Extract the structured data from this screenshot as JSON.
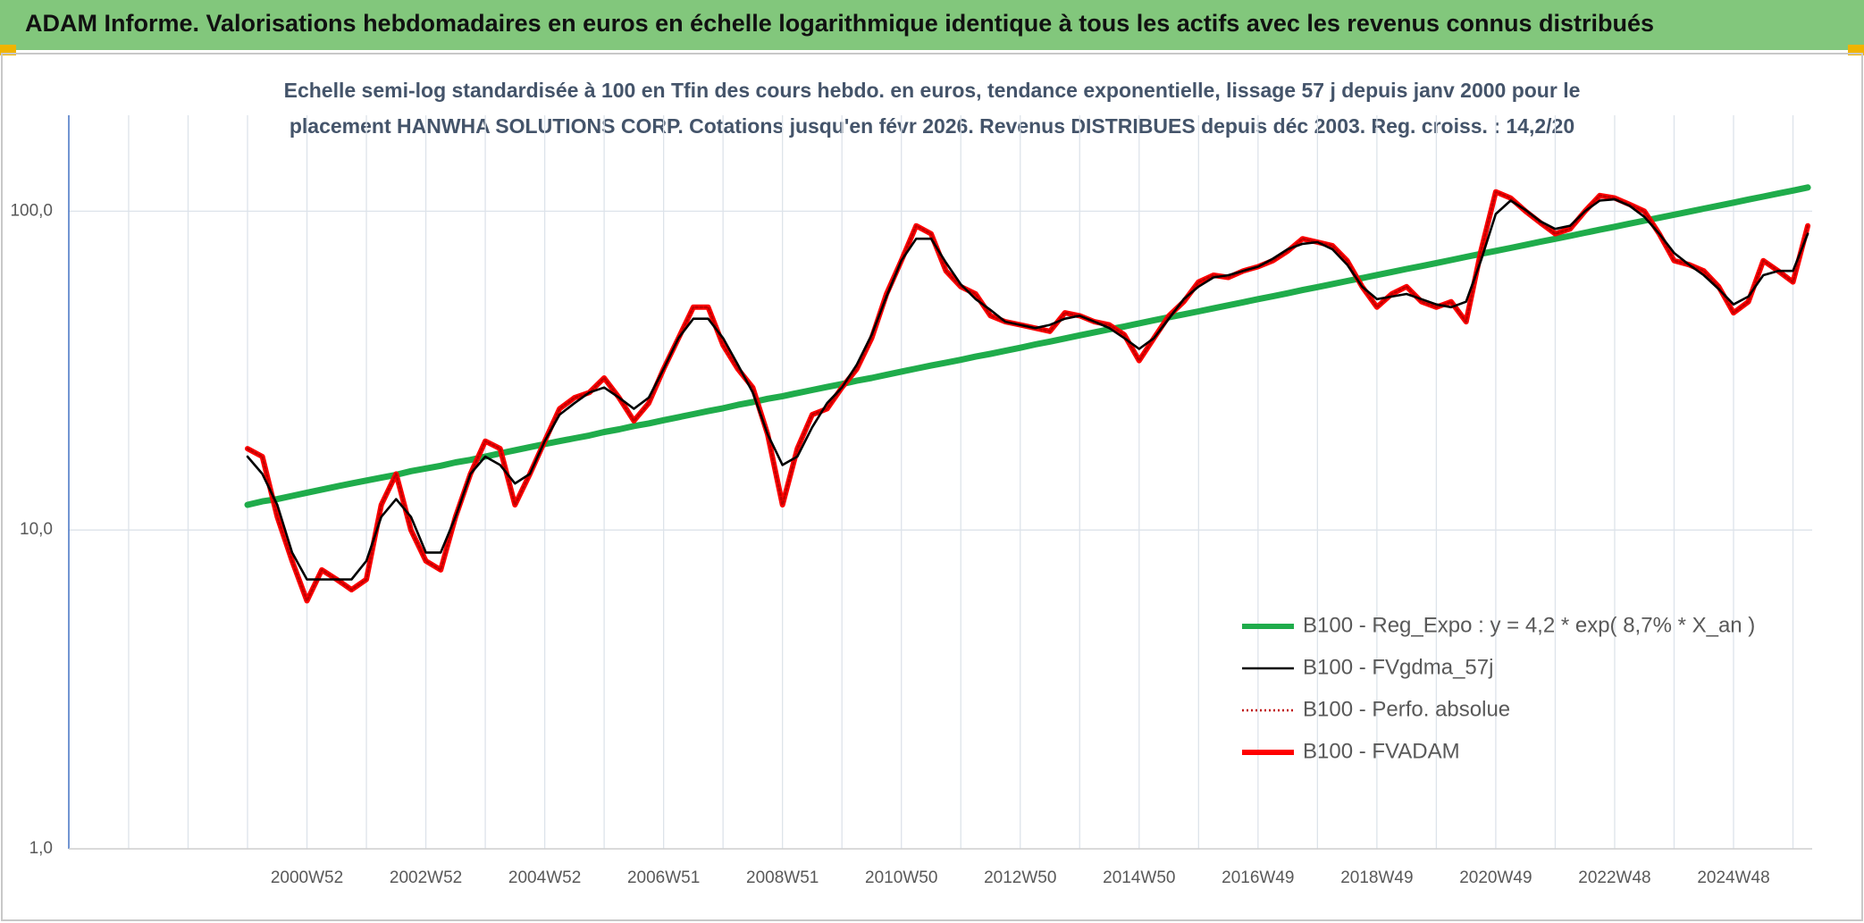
{
  "header": {
    "title": "ADAM Informe. Valorisations hebdomadaires en euros en échelle logarithmique identique à tous les actifs avec les revenus connus distribués"
  },
  "chart_data": {
    "type": "line",
    "subtitle_lines": [
      "Echelle semi-log standardisée à 100 en Tfin des cours hebdo. en euros, tendance exponentielle, lissage 57 j depuis janv 2000 pour le",
      "placement HANWHA SOLUTIONS CORP. Cotations jusqu'en févr 2026. Revenus DISTRIBUES depuis déc 2003. Reg. croiss. : 14,2/20"
    ],
    "y_scale": "log",
    "grid": true,
    "legend": "lower right",
    "ylim": [
      1,
      200
    ],
    "yticks": [
      {
        "value": 1,
        "label": "1,0"
      },
      {
        "value": 10,
        "label": "10,0"
      },
      {
        "value": 100,
        "label": "100,0"
      }
    ],
    "categories": [
      null,
      null,
      null,
      null,
      "2000W52",
      null,
      null,
      null,
      null,
      null,
      null,
      null,
      "2002W52",
      null,
      null,
      null,
      null,
      null,
      null,
      null,
      "2004W52",
      null,
      null,
      null,
      null,
      null,
      null,
      null,
      "2006W51",
      null,
      null,
      null,
      null,
      null,
      null,
      null,
      "2008W51",
      null,
      null,
      null,
      null,
      null,
      null,
      null,
      "2010W50",
      null,
      null,
      null,
      null,
      null,
      null,
      null,
      "2012W50",
      null,
      null,
      null,
      null,
      null,
      null,
      null,
      "2014W50",
      null,
      null,
      null,
      null,
      null,
      null,
      null,
      "2016W49",
      null,
      null,
      null,
      null,
      null,
      null,
      null,
      "2018W49",
      null,
      null,
      null,
      null,
      null,
      null,
      null,
      "2020W49",
      null,
      null,
      null,
      null,
      null,
      null,
      null,
      "2022W48",
      null,
      null,
      null,
      null,
      null,
      null,
      null,
      "2024W48",
      null,
      null,
      null,
      null,
      null
    ],
    "series": [
      {
        "name": "B100 - Reg_Expo : y = 4,2 * exp( 8,7% *  X_an )",
        "color": "#1fac4b",
        "line_style": "solid",
        "values": [
          12.0,
          12.3,
          12.5,
          12.8,
          13.1,
          13.4,
          13.7,
          14.0,
          14.3,
          14.6,
          14.9,
          15.3,
          15.6,
          15.9,
          16.3,
          16.6,
          17.0,
          17.4,
          17.8,
          18.2,
          18.6,
          19.0,
          19.4,
          19.8,
          20.3,
          20.7,
          21.2,
          21.6,
          22.1,
          22.6,
          23.1,
          23.6,
          24.1,
          24.7,
          25.2,
          25.8,
          26.3,
          26.9,
          27.5,
          28.1,
          28.7,
          29.4,
          30.0,
          30.7,
          31.4,
          32.1,
          32.8,
          33.5,
          34.2,
          35.0,
          35.7,
          36.5,
          37.3,
          38.2,
          39.0,
          39.9,
          40.8,
          41.7,
          42.6,
          43.5,
          44.5,
          45.5,
          46.5,
          47.5,
          48.5,
          49.6,
          50.7,
          51.8,
          53.0,
          54.1,
          55.3,
          56.6,
          57.8,
          59.1,
          60.4,
          61.7,
          63.1,
          64.5,
          65.9,
          67.3,
          68.8,
          70.3,
          71.9,
          73.5,
          75.1,
          76.7,
          78.4,
          80.2,
          81.9,
          83.7,
          85.6,
          87.5,
          89.4,
          91.4,
          93.4,
          95.4,
          97.5,
          99.7,
          101.9,
          104.1,
          106.4,
          108.8,
          111.2,
          113.6,
          116.1,
          118.7
        ]
      },
      {
        "name": "B100 - FVgdma_57j",
        "color": "#000000",
        "line_style": "solid",
        "values": [
          17,
          15,
          12,
          8.5,
          7,
          7,
          7,
          7,
          8,
          11,
          12.5,
          11,
          8.5,
          8.5,
          11,
          15,
          17,
          16,
          14,
          15,
          19,
          23,
          25,
          27,
          28,
          26,
          24,
          26,
          32,
          40,
          46,
          46,
          40,
          33,
          27,
          20,
          16,
          17,
          21,
          25,
          28,
          33,
          41,
          54,
          70,
          82,
          82,
          69,
          59,
          53,
          49,
          45,
          44,
          43,
          44,
          46,
          47,
          45,
          43,
          40,
          37,
          40,
          46,
          53,
          58,
          62,
          63,
          65,
          67,
          71,
          76,
          79,
          80,
          76,
          68,
          58,
          53,
          54,
          55,
          53,
          51,
          50,
          52,
          70,
          98,
          108,
          101,
          93,
          88,
          90,
          100,
          108,
          109,
          104,
          96,
          85,
          74,
          68,
          63,
          57,
          51,
          54,
          63,
          65,
          65,
          85
        ]
      },
      {
        "name": "B100 - Perfo. absolue",
        "color": "#c00000",
        "line_style": "dotted",
        "values": [
          18,
          17,
          11,
          8,
          6,
          7.5,
          7,
          6.5,
          7,
          12,
          15,
          10,
          8,
          7.5,
          11,
          15,
          19,
          18,
          12,
          15,
          19,
          24,
          26,
          27,
          30,
          26,
          22,
          25,
          32,
          40,
          50,
          50,
          38,
          32,
          28,
          20,
          12,
          18,
          23,
          24,
          28,
          32,
          40,
          55,
          70,
          90,
          85,
          65,
          58,
          55,
          47,
          45,
          44,
          43,
          42,
          48,
          47,
          45,
          44,
          41,
          34,
          40,
          47,
          52,
          60,
          63,
          62,
          65,
          67,
          70,
          75,
          82,
          80,
          78,
          70,
          58,
          50,
          55,
          58,
          52,
          50,
          52,
          45,
          75,
          115,
          110,
          100,
          92,
          85,
          88,
          100,
          112,
          110,
          105,
          100,
          85,
          70,
          68,
          65,
          58,
          48,
          52,
          70,
          65,
          60,
          90
        ]
      },
      {
        "name": "B100 - FVADAM",
        "color": "#ff0000",
        "line_style": "solid",
        "values": [
          18,
          17,
          11,
          8,
          6,
          7.5,
          7,
          6.5,
          7,
          12,
          15,
          10,
          8,
          7.5,
          11,
          15,
          19,
          18,
          12,
          15,
          19,
          24,
          26,
          27,
          30,
          26,
          22,
          25,
          32,
          40,
          50,
          50,
          38,
          32,
          28,
          20,
          12,
          18,
          23,
          24,
          28,
          32,
          40,
          55,
          70,
          90,
          85,
          65,
          58,
          55,
          47,
          45,
          44,
          43,
          42,
          48,
          47,
          45,
          44,
          41,
          34,
          40,
          47,
          52,
          60,
          63,
          62,
          65,
          67,
          70,
          75,
          82,
          80,
          78,
          70,
          58,
          50,
          55,
          58,
          52,
          50,
          52,
          45,
          75,
          115,
          110,
          100,
          92,
          85,
          88,
          100,
          112,
          110,
          105,
          100,
          85,
          70,
          68,
          65,
          58,
          48,
          52,
          70,
          65,
          60,
          90
        ]
      }
    ]
  }
}
